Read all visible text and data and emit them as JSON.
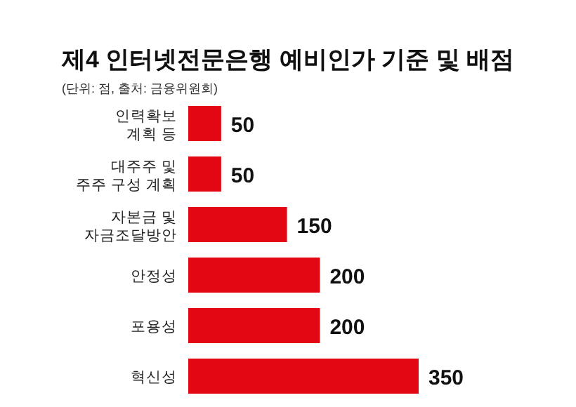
{
  "chart_data": {
    "type": "bar",
    "orientation": "horizontal",
    "title": "제4 인터넷전문은행 예비인가 기준 및 배점",
    "subtitle": "(단위: 점, 출처: 금융위원회)",
    "categories": [
      "인력확보\n계획 등",
      "대주주 및\n주주 구성 계획",
      "자본금 및\n자금조달방안",
      "안정성",
      "포용성",
      "혁신성"
    ],
    "values": [
      50,
      50,
      150,
      200,
      200,
      350
    ],
    "color": "#e30613",
    "data_labels": true
  }
}
